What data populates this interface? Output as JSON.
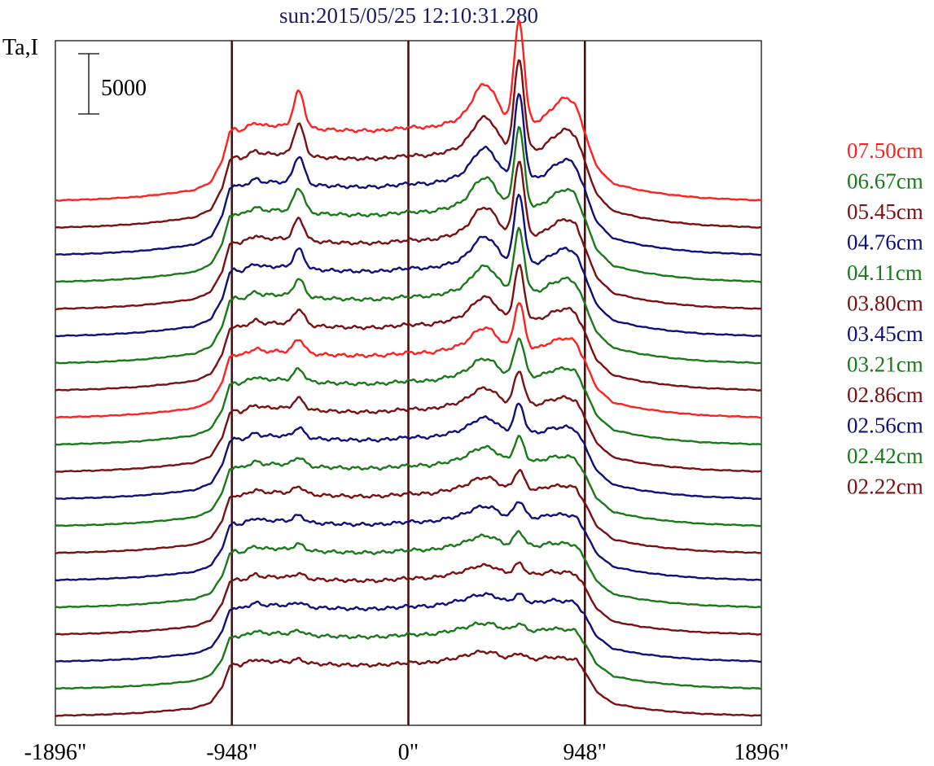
{
  "chart_data": {
    "type": "line",
    "title": "sun:2015/05/25 12:10:31.280",
    "ylabel": "Ta,I",
    "scale_bar_label": "5000",
    "xlim": [
      -1896,
      1896
    ],
    "x_ticks": [
      "-1896\"",
      "-948\"",
      "0\"",
      "948\"",
      "1896\""
    ],
    "vertical_lines": [
      -948,
      0,
      948
    ],
    "plot_order": [
      "02.22cm",
      "02.42cm",
      "02.56cm",
      "02.86cm",
      "03.21cm",
      "03.45cm",
      "03.80cm",
      "04.11cm",
      "04.76cm",
      "05.45cm",
      "06.67cm",
      "07.50cm"
    ],
    "legend": [
      {
        "label": "07.50cm",
        "color": "#ff2020"
      },
      {
        "label": "06.67cm",
        "color": "#1a7a1a"
      },
      {
        "label": "05.45cm",
        "color": "#7a1010"
      },
      {
        "label": "04.76cm",
        "color": "#10107a"
      },
      {
        "label": "04.11cm",
        "color": "#1a7a1a"
      },
      {
        "label": "03.80cm",
        "color": "#7a1010"
      },
      {
        "label": "03.45cm",
        "color": "#10107a"
      },
      {
        "label": "03.21cm",
        "color": "#1a7a1a"
      },
      {
        "label": "02.86cm",
        "color": "#7a1010"
      },
      {
        "label": "02.56cm",
        "color": "#10107a"
      },
      {
        "label": "02.42cm",
        "color": "#1a7a1a"
      },
      {
        "label": "02.22cm",
        "color": "#7a1010"
      }
    ],
    "extra_traces": [
      {
        "color": "#7a1010"
      },
      {
        "color": "#1a7a1a"
      },
      {
        "color": "#10107a"
      },
      {
        "color": "#7a1010"
      },
      {
        "color": "#1a7a1a"
      },
      {
        "color": "#10107a"
      },
      {
        "color": "#7a1010"
      },
      {
        "color": "#1a7a1a"
      }
    ],
    "profile": {
      "x": [
        -1896,
        -1660,
        -1450,
        -1300,
        -1150,
        -1060,
        -1000,
        -960,
        -935,
        -900,
        -820,
        -780,
        -690,
        -610,
        -500,
        -300,
        -150,
        0,
        120,
        260,
        360,
        450,
        520,
        590,
        660,
        700,
        760,
        820,
        900,
        948,
        1010,
        1100,
        1250,
        1400,
        1580,
        1896
      ],
      "y": [
        0,
        80,
        220,
        400,
        620,
        1100,
        2400,
        4100,
        4300,
        4200,
        4700,
        4500,
        4500,
        4400,
        4300,
        4200,
        4200,
        4400,
        4400,
        4800,
        5100,
        5100,
        4800,
        4700,
        4700,
        4700,
        4800,
        4600,
        4500,
        3600,
        2000,
        1000,
        600,
        350,
        150,
        0
      ]
    },
    "peaks": [
      {
        "x": -588,
        "width": 28
      },
      {
        "x": 410,
        "width": 60
      },
      {
        "x": 595,
        "width": 26
      },
      {
        "x": 850,
        "width": 65
      }
    ],
    "trace_offsets": [
      0,
      2250,
      4500,
      6750,
      9000,
      11250,
      13500,
      15750,
      18000,
      20250,
      22500,
      24750,
      27000,
      29250,
      31500,
      33750,
      36000,
      38250,
      40500,
      42750
    ],
    "peak_amplitudes": [
      [
        300,
        200,
        500,
        200
      ],
      [
        350,
        200,
        600,
        250
      ],
      [
        350,
        250,
        700,
        250
      ],
      [
        400,
        300,
        900,
        300
      ],
      [
        500,
        400,
        1200,
        350
      ],
      [
        550,
        500,
        1400,
        400
      ],
      [
        600,
        550,
        1600,
        450
      ],
      [
        700,
        700,
        2000,
        550
      ],
      [
        800,
        800,
        2400,
        650
      ],
      [
        900,
        900,
        2800,
        750
      ],
      [
        1000,
        1000,
        3200,
        850
      ],
      [
        1150,
        1200,
        3800,
        1000
      ],
      [
        1300,
        1400,
        4500,
        1100
      ],
      [
        1450,
        1600,
        5200,
        1250
      ],
      [
        1600,
        1700,
        5800,
        1400
      ],
      [
        1800,
        1800,
        6200,
        1500
      ],
      [
        2000,
        1900,
        6600,
        1650
      ],
      [
        2300,
        2000,
        7000,
        1750
      ],
      [
        2600,
        2200,
        7500,
        1900
      ],
      [
        3000,
        2600,
        8500,
        2200
      ]
    ],
    "ylim": [
      -800,
      56000
    ]
  }
}
